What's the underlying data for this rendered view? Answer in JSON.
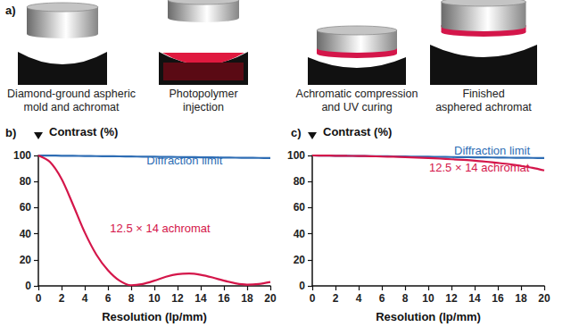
{
  "panel_a": {
    "label": "a)",
    "steps": [
      {
        "caption": [
          "Diamond-ground aspheric",
          "mold and achromat"
        ]
      },
      {
        "caption": [
          "Photopolymer",
          "injection"
        ]
      },
      {
        "caption": [
          "Achromatic compression",
          "and UV curing"
        ]
      },
      {
        "caption": [
          "Finished",
          "asphered achromat"
        ]
      }
    ]
  },
  "chart_data": [
    {
      "type": "line",
      "title": "b)",
      "xlabel": "Resolution (lp/mm)",
      "ylabel": "Contrast (%)",
      "x": [
        0,
        1,
        2,
        3,
        4,
        5,
        6,
        7,
        8,
        9,
        10,
        11,
        12,
        13,
        14,
        15,
        16,
        17,
        18,
        19,
        20
      ],
      "series": [
        {
          "name": "Diffraction limit",
          "color": "#2e6db4",
          "values": [
            100,
            99.9,
            99.8,
            99.7,
            99.6,
            99.5,
            99.4,
            99.3,
            99.2,
            99.1,
            99,
            98.9,
            98.8,
            98.7,
            98.6,
            98.5,
            98.4,
            98.3,
            98.2,
            98.1,
            98
          ]
        },
        {
          "name": "12.5 × 14 achromat",
          "color": "#d4164a",
          "values": [
            100,
            95,
            82,
            62,
            41,
            24,
            12,
            4,
            0.5,
            1.5,
            4,
            7,
            9,
            9.5,
            8.5,
            6.5,
            4,
            2,
            1,
            1.5,
            3
          ]
        }
      ],
      "xlim": [
        0,
        20
      ],
      "ylim": [
        0,
        100
      ],
      "xticks": [
        0,
        2,
        4,
        6,
        8,
        10,
        12,
        14,
        16,
        18,
        20
      ],
      "yticks": [
        0,
        20,
        40,
        60,
        80,
        100
      ],
      "grid": false
    },
    {
      "type": "line",
      "title": "c)",
      "xlabel": "Resolution (lp/mm)",
      "ylabel": "Contrast (%)",
      "x": [
        0,
        1,
        2,
        3,
        4,
        5,
        6,
        7,
        8,
        9,
        10,
        11,
        12,
        13,
        14,
        15,
        16,
        17,
        18,
        19,
        20
      ],
      "series": [
        {
          "name": "Diffraction limit",
          "color": "#2e6db4",
          "values": [
            100,
            99.9,
            99.8,
            99.7,
            99.6,
            99.5,
            99.4,
            99.3,
            99.2,
            99.1,
            99,
            98.9,
            98.8,
            98.7,
            98.6,
            98.5,
            98.4,
            98.3,
            98.2,
            98.1,
            98
          ]
        },
        {
          "name": "12.5 × 14 achromat",
          "color": "#d4164a",
          "values": [
            100,
            99.9,
            99.8,
            99.7,
            99.6,
            99.4,
            99.2,
            99,
            98.7,
            98.4,
            98,
            97.6,
            97.1,
            96.6,
            96,
            95.2,
            94.3,
            93.3,
            92,
            90.5,
            88.5
          ]
        }
      ],
      "xlim": [
        0,
        20
      ],
      "ylim": [
        0,
        100
      ],
      "xticks": [
        0,
        2,
        4,
        6,
        8,
        10,
        12,
        14,
        16,
        18,
        20
      ],
      "yticks": [
        0,
        20,
        40,
        60,
        80,
        100
      ],
      "grid": false
    }
  ]
}
